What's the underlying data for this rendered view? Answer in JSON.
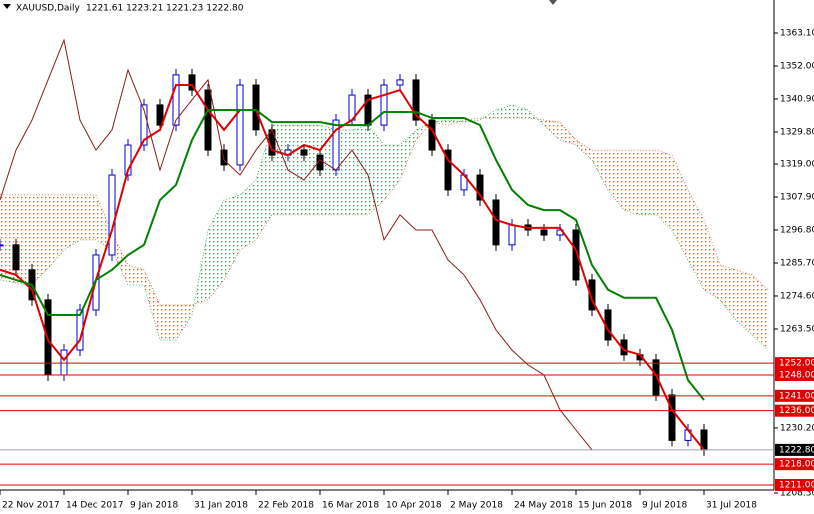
{
  "chart_data": {
    "type": "candlestick",
    "title": "XAUUSD,Daily",
    "subtitle": "1221.61 1223.21 1221.23 1222.80",
    "xlim": [
      0,
      193.5
    ],
    "xticks": [
      {
        "value": 0,
        "label": "22 Nov 2017"
      },
      {
        "value": 16,
        "label": "14 Dec 2017"
      },
      {
        "value": 32,
        "label": "9 Jan 2018"
      },
      {
        "value": 48,
        "label": "31 Jan 2018"
      },
      {
        "value": 64,
        "label": "22 Feb 2018"
      },
      {
        "value": 80,
        "label": "16 Mar 2018"
      },
      {
        "value": 96,
        "label": "10 Apr 2018"
      },
      {
        "value": 112,
        "label": "2 May 2018"
      },
      {
        "value": 128,
        "label": "24 May 2018"
      },
      {
        "value": 144,
        "label": "15 Jun 2018"
      },
      {
        "value": 160,
        "label": "9 Jul 2018"
      },
      {
        "value": 176,
        "label": "31 Jul 2018"
      }
    ],
    "ylim": [
      1208.3,
      1374.2
    ],
    "yticks": [
      {
        "value": 1363.1,
        "label": "1363.10"
      },
      {
        "value": 1352,
        "label": "1352.00"
      },
      {
        "value": 1340.9,
        "label": "1340.90"
      },
      {
        "value": 1329.8,
        "label": "1329.80"
      },
      {
        "value": 1319,
        "label": "1319.00"
      },
      {
        "value": 1307.9,
        "label": "1307.90"
      },
      {
        "value": 1296.8,
        "label": "1296.80"
      },
      {
        "value": 1285.7,
        "label": "1285.70"
      },
      {
        "value": 1274.6,
        "label": "1274.60"
      },
      {
        "value": 1263.5,
        "label": "1263.50"
      },
      {
        "value": 1230.2,
        "label": "1230.20"
      },
      {
        "value": 1208.3,
        "label": "1208.30"
      }
    ],
    "x_step": 4,
    "candles": {
      "up_color": "#0000cc",
      "down_color": "#000000",
      "values": [
        1291.8,
        1283.4,
        1273.3,
        1248,
        1256.4,
        1269.9,
        1288.4,
        1315.3,
        1325.4,
        1338.9,
        1332.1,
        1349,
        1343.9,
        1323.7,
        1318.7,
        1345.6,
        1330.5,
        1322,
        1323.7,
        1322,
        1317,
        1333.8,
        1342.2,
        1332.1,
        1345.6,
        1347.3,
        1333.8,
        1323.7,
        1310.3,
        1315.3,
        1306.9,
        1291.8,
        1298.5,
        1296.8,
        1295.1,
        1296.8,
        1280,
        1269.9,
        1259.8,
        1254.8,
        1253.1,
        1241.3,
        1226,
        1229.5,
        1222.8
      ]
    },
    "lines": [
      {
        "color": "#e00000",
        "width": 2,
        "values": [
          1283.4,
          1281.7,
          1276.7,
          1259.8,
          1253.1,
          1259.8,
          1280,
          1296.8,
          1317,
          1327.1,
          1330.5,
          1345.6,
          1345.6,
          1337.2,
          1330.5,
          1337.2,
          1337.2,
          1323.7,
          1322,
          1325.4,
          1323.7,
          1330.5,
          1333.8,
          1340.6,
          1342.2,
          1343.9,
          1335.5,
          1330.5,
          1320.4,
          1315.3,
          1308.6,
          1300.2,
          1298.5,
          1297.5,
          1297.5,
          1297.5,
          1290.1,
          1273.3,
          1263.2,
          1256.4,
          1254.8,
          1248,
          1236.3,
          1229.5,
          1222.8
        ]
      },
      {
        "color": "#008000",
        "width": 2,
        "values": [
          1281.7,
          1280,
          1278.3,
          1268.2,
          1268.2,
          1268.2,
          1280,
          1283.4,
          1288.4,
          1291.8,
          1306.9,
          1312,
          1327.1,
          1337.2,
          1337.2,
          1337.2,
          1337.2,
          1333.1,
          1333.1,
          1333.1,
          1333.1,
          1332.1,
          1332.1,
          1332.1,
          1336.5,
          1336.5,
          1336.5,
          1334.5,
          1334.5,
          1334.5,
          1332.1,
          1320.4,
          1310.3,
          1305.2,
          1303.5,
          1303.5,
          1300.2,
          1285,
          1276.7,
          1274,
          1274,
          1274,
          1263.2,
          1246.3,
          1239.6
        ]
      },
      {
        "color": "#8b1a1a",
        "width": 1,
        "values": [
          1306.9,
          1323.7,
          1333.8,
          1347.3,
          1360.7,
          1333.8,
          1323.7,
          1330.5,
          1350.6,
          1337.2,
          1317,
          1333.8,
          1340.6,
          1347.3,
          1320.4,
          1315.3,
          1323.7,
          1330.5,
          1317,
          1313.6,
          1320.4,
          1317,
          1323.7,
          1315.3,
          1293.5,
          1301.9,
          1296.8,
          1296.8,
          1286.7,
          1281.7,
          1273.3,
          1263.2,
          1256.4,
          1251.4,
          1248,
          1236.3,
          1229.5,
          1222.8
        ]
      }
    ],
    "cloud": {
      "up_color": "#2e9e4e",
      "down_color": "#e2601a",
      "span_a": [
        1280,
        1279,
        1278.3,
        1284,
        1290.1,
        1293.5,
        1293.5,
        1290,
        1278.3,
        1278.3,
        1259.8,
        1259.8,
        1268.2,
        1296.8,
        1306.9,
        1308.6,
        1313.6,
        1332.1,
        1332.1,
        1332.1,
        1332.1,
        1330.5,
        1330.5,
        1332.1,
        1325.4,
        1325.4,
        1330.5,
        1333.1,
        1333.8,
        1333.1,
        1333.8,
        1337.2,
        1338.9,
        1337.2,
        1332.1,
        1327.1,
        1325.4,
        1320.4,
        1310.3,
        1303.5,
        1301.9,
        1301.9,
        1296.8,
        1286.7,
        1276.7,
        1273.3,
        1266.5,
        1261.5,
        1256.4
      ],
      "span_b": [
        1308.6,
        1308.6,
        1308.6,
        1308.6,
        1308.6,
        1308.6,
        1308.6,
        1296,
        1285,
        1283.4,
        1271.6,
        1271.6,
        1271.6,
        1273.3,
        1280,
        1290.1,
        1293.5,
        1301.9,
        1301.9,
        1301.9,
        1301.9,
        1301.9,
        1301.9,
        1301.9,
        1306.9,
        1313.6,
        1327.1,
        1333.1,
        1332.1,
        1333.8,
        1334.5,
        1334.5,
        1334.5,
        1334.5,
        1333.8,
        1333.1,
        1327.1,
        1323.7,
        1323.7,
        1323.7,
        1323.7,
        1323.7,
        1322,
        1310.3,
        1300.2,
        1285,
        1283.4,
        1281.7,
        1276.7
      ]
    },
    "levels": {
      "color": "#e00000",
      "values": [
        {
          "value": 1252,
          "label": "1252.00"
        },
        {
          "value": 1248,
          "label": "1248.00"
        },
        {
          "value": 1241,
          "label": "1241.00"
        },
        {
          "value": 1236,
          "label": "1236.00"
        },
        {
          "value": 1218,
          "label": "1218.00"
        },
        {
          "value": 1211,
          "label": "1211.00"
        }
      ]
    },
    "last_price": {
      "value": 1222.8,
      "label": "1222.80",
      "color": "#9aa4b0"
    }
  }
}
